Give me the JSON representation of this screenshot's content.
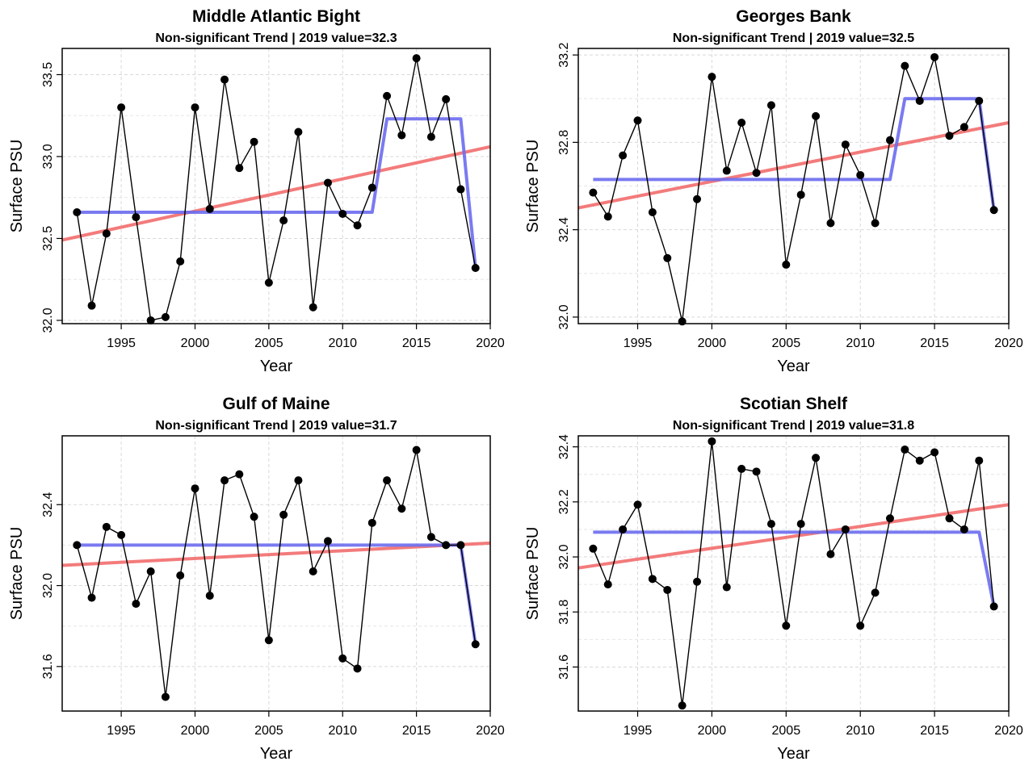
{
  "chart_data": [
    {
      "type": "line",
      "title": "Middle Atlantic Bight",
      "subtitle": "Non-significant Trend | 2019 value=32.3",
      "xlabel": "Year",
      "ylabel": "Surface PSU",
      "xlim": [
        1991,
        2020
      ],
      "ylim": [
        31.98,
        33.66
      ],
      "xticks": [
        1995,
        2000,
        2005,
        2010,
        2015,
        2020
      ],
      "xtick_labels": [
        "1995",
        "2000",
        "2005",
        "2010",
        "2015",
        "2020"
      ],
      "yticks": [
        32.0,
        32.5,
        33.0,
        33.5
      ],
      "ytick_labels": [
        "32.0",
        "32.5",
        "33.0",
        "33.5"
      ],
      "grid": true,
      "x": [
        1992,
        1993,
        1994,
        1995,
        1996,
        1997,
        1998,
        1999,
        2000,
        2001,
        2002,
        2003,
        2004,
        2005,
        2006,
        2007,
        2008,
        2009,
        2010,
        2011,
        2012,
        2013,
        2014,
        2015,
        2016,
        2017,
        2018,
        2019
      ],
      "values": [
        32.66,
        32.09,
        32.53,
        33.3,
        32.63,
        32.0,
        32.02,
        32.36,
        33.3,
        32.68,
        33.47,
        32.93,
        33.09,
        32.23,
        32.61,
        33.15,
        32.08,
        32.84,
        32.65,
        32.58,
        32.81,
        33.37,
        33.13,
        33.6,
        33.12,
        33.35,
        32.8,
        32.32
      ],
      "trend": {
        "x": [
          1991,
          2020
        ],
        "y": [
          32.49,
          33.06
        ],
        "color": "#f26d6d"
      },
      "regime": {
        "x": [
          1992,
          2012,
          2013,
          2018,
          2019
        ],
        "y": [
          32.66,
          32.66,
          33.23,
          33.23,
          32.32
        ],
        "color": "#6b6bf0"
      }
    },
    {
      "type": "line",
      "title": "Georges Bank",
      "subtitle": "Non-significant Trend | 2019 value=32.5",
      "xlabel": "Year",
      "ylabel": "Surface PSU",
      "xlim": [
        1991,
        2020
      ],
      "ylim": [
        31.97,
        33.23
      ],
      "xticks": [
        1995,
        2000,
        2005,
        2010,
        2015,
        2020
      ],
      "xtick_labels": [
        "1995",
        "2000",
        "2005",
        "2010",
        "2015",
        "2020"
      ],
      "yticks": [
        32.0,
        32.4,
        32.8,
        33.2
      ],
      "ytick_labels": [
        "32.0",
        "32.4",
        "32.8",
        "33.2"
      ],
      "grid": true,
      "x": [
        1992,
        1993,
        1994,
        1995,
        1996,
        1997,
        1998,
        1999,
        2000,
        2001,
        2002,
        2003,
        2004,
        2005,
        2006,
        2007,
        2008,
        2009,
        2010,
        2011,
        2012,
        2013,
        2014,
        2015,
        2016,
        2017,
        2018,
        2019
      ],
      "values": [
        32.57,
        32.46,
        32.74,
        32.9,
        32.48,
        32.27,
        31.98,
        32.54,
        33.1,
        32.67,
        32.89,
        32.66,
        32.97,
        32.24,
        32.56,
        32.92,
        32.43,
        32.79,
        32.65,
        32.43,
        32.81,
        33.15,
        32.99,
        33.19,
        32.83,
        32.87,
        32.99,
        32.49
      ],
      "trend": {
        "x": [
          1991,
          2020
        ],
        "y": [
          32.5,
          32.89
        ],
        "color": "#f26d6d"
      },
      "regime": {
        "x": [
          1992,
          2012,
          2013,
          2018,
          2019
        ],
        "y": [
          32.63,
          32.63,
          33.0,
          33.0,
          32.49
        ],
        "color": "#6b6bf0"
      }
    },
    {
      "type": "line",
      "title": "Gulf of Maine",
      "subtitle": "Non-significant Trend | 2019 value=31.7",
      "xlabel": "Year",
      "ylabel": "Surface PSU",
      "xlim": [
        1991,
        2020
      ],
      "ylim": [
        31.38,
        32.74
      ],
      "xticks": [
        1995,
        2000,
        2005,
        2010,
        2015,
        2020
      ],
      "xtick_labels": [
        "1995",
        "2000",
        "2005",
        "2010",
        "2015",
        "2020"
      ],
      "yticks": [
        31.6,
        32.0,
        32.4
      ],
      "ytick_labels": [
        "31.6",
        "32.0",
        "32.4"
      ],
      "grid": true,
      "x": [
        1992,
        1993,
        1994,
        1995,
        1996,
        1997,
        1998,
        1999,
        2000,
        2001,
        2002,
        2003,
        2004,
        2005,
        2006,
        2007,
        2008,
        2009,
        2010,
        2011,
        2012,
        2013,
        2014,
        2015,
        2016,
        2017,
        2018,
        2019
      ],
      "values": [
        32.2,
        31.94,
        32.29,
        32.25,
        31.91,
        32.07,
        31.45,
        32.05,
        32.48,
        31.95,
        32.52,
        32.55,
        32.34,
        31.73,
        32.35,
        32.52,
        32.07,
        32.22,
        31.64,
        31.59,
        32.31,
        32.52,
        32.38,
        32.67,
        32.24,
        32.2,
        32.2,
        31.71
      ],
      "trend": {
        "x": [
          1991,
          2020
        ],
        "y": [
          32.1,
          32.21
        ],
        "color": "#f26d6d"
      },
      "regime": {
        "x": [
          1992,
          2018,
          2019
        ],
        "y": [
          32.2,
          32.2,
          31.71
        ],
        "color": "#6b6bf0"
      }
    },
    {
      "type": "line",
      "title": "Scotian Shelf",
      "subtitle": "Non-significant Trend | 2019 value=31.8",
      "xlabel": "Year",
      "ylabel": "Surface PSU",
      "xlim": [
        1991,
        2020
      ],
      "ylim": [
        31.44,
        32.44
      ],
      "xticks": [
        1995,
        2000,
        2005,
        2010,
        2015,
        2020
      ],
      "xtick_labels": [
        "1995",
        "2000",
        "2005",
        "2010",
        "2015",
        "2020"
      ],
      "yticks": [
        31.6,
        31.8,
        32.0,
        32.2,
        32.4
      ],
      "ytick_labels": [
        "31.6",
        "31.8",
        "32.0",
        "32.2",
        "32.4"
      ],
      "grid": true,
      "x": [
        1992,
        1993,
        1994,
        1995,
        1996,
        1997,
        1998,
        1999,
        2000,
        2001,
        2002,
        2003,
        2004,
        2005,
        2006,
        2007,
        2008,
        2009,
        2010,
        2011,
        2012,
        2013,
        2014,
        2015,
        2016,
        2017,
        2018,
        2019
      ],
      "values": [
        32.03,
        31.9,
        32.1,
        32.19,
        31.92,
        31.88,
        31.46,
        31.91,
        32.42,
        31.89,
        32.32,
        32.31,
        32.12,
        31.75,
        32.12,
        32.36,
        32.01,
        32.1,
        31.75,
        31.87,
        32.14,
        32.39,
        32.35,
        32.38,
        32.14,
        32.1,
        32.35,
        31.82
      ],
      "trend": {
        "x": [
          1991,
          2020
        ],
        "y": [
          31.96,
          32.19
        ],
        "color": "#f26d6d"
      },
      "regime": {
        "x": [
          1992,
          2018,
          2019
        ],
        "y": [
          32.09,
          32.09,
          31.82
        ],
        "color": "#6b6bf0"
      }
    }
  ]
}
